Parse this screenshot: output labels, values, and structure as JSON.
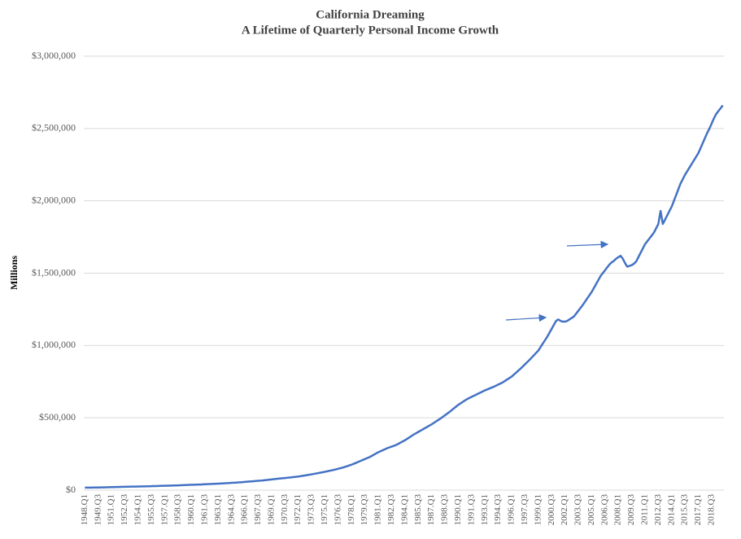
{
  "chart_data": {
    "type": "line",
    "title": "California  Dreaming",
    "subtitle": "A Lifetime of Quarterly Personal Income Growth",
    "y_label": "Millions",
    "color": "#4472c4",
    "grid": true,
    "ylim": [
      0,
      3000000
    ],
    "yticks": [
      {
        "value": 0,
        "label": "$0"
      },
      {
        "value": 500000,
        "label": "$500,000"
      },
      {
        "value": 1000000,
        "label": "$1,000,000"
      },
      {
        "value": 1500000,
        "label": "$1,500,000"
      },
      {
        "value": 2000000,
        "label": "$2,000,000"
      },
      {
        "value": 2500000,
        "label": "$2,500,000"
      },
      {
        "value": 3000000,
        "label": "$3,000,000"
      }
    ],
    "categories": [
      "1948.Q1",
      null,
      null,
      null,
      null,
      null,
      "1949.Q3",
      null,
      null,
      null,
      null,
      null,
      "1951.Q1",
      null,
      null,
      null,
      null,
      null,
      "1952.Q3",
      null,
      null,
      null,
      null,
      null,
      "1954.Q1",
      null,
      null,
      null,
      null,
      null,
      "1955.Q3",
      null,
      null,
      null,
      null,
      null,
      "1957.Q1",
      null,
      null,
      null,
      null,
      null,
      "1958.Q3",
      null,
      null,
      null,
      null,
      null,
      "1960.Q1",
      null,
      null,
      null,
      null,
      null,
      "1961.Q3",
      null,
      null,
      null,
      null,
      null,
      "1963.Q1",
      null,
      null,
      null,
      null,
      null,
      "1964.Q3",
      null,
      null,
      null,
      null,
      null,
      "1966.Q1",
      null,
      null,
      null,
      null,
      null,
      "1967.Q3",
      null,
      null,
      null,
      null,
      null,
      "1969.Q1",
      null,
      null,
      null,
      null,
      null,
      "1970.Q3",
      null,
      null,
      null,
      null,
      null,
      "1972.Q1",
      null,
      null,
      null,
      null,
      null,
      "1973.Q3",
      null,
      null,
      null,
      null,
      null,
      "1975.Q1",
      null,
      null,
      null,
      null,
      null,
      "1976.Q3",
      null,
      null,
      null,
      null,
      null,
      "1978.Q1",
      null,
      null,
      null,
      null,
      null,
      "1979.Q3",
      null,
      null,
      null,
      null,
      null,
      "1981.Q1",
      null,
      null,
      null,
      null,
      null,
      "1982.Q3",
      null,
      null,
      null,
      null,
      null,
      "1984.Q1",
      null,
      null,
      null,
      null,
      null,
      "1985.Q3",
      null,
      null,
      null,
      null,
      null,
      "1987.Q1",
      null,
      null,
      null,
      null,
      null,
      "1988.Q3",
      null,
      null,
      null,
      null,
      null,
      "1990.Q1",
      null,
      null,
      null,
      null,
      null,
      "1991.Q3",
      null,
      null,
      null,
      null,
      null,
      "1993.Q1",
      null,
      null,
      null,
      null,
      null,
      "1994.Q3",
      null,
      null,
      null,
      null,
      null,
      "1996.Q1",
      null,
      null,
      null,
      null,
      null,
      "1997.Q3",
      null,
      null,
      null,
      null,
      null,
      "1999.Q1",
      null,
      null,
      null,
      null,
      null,
      "2000.Q3",
      null,
      null,
      null,
      null,
      null,
      "2002.Q1",
      null,
      null,
      null,
      null,
      null,
      "2003.Q3",
      null,
      null,
      null,
      null,
      null,
      "2005.Q1",
      null,
      null,
      null,
      null,
      null,
      "2006.Q3",
      null,
      null,
      null,
      null,
      null,
      "2008.Q1",
      null,
      null,
      null,
      null,
      null,
      "2009.Q3",
      null,
      null,
      null,
      null,
      null,
      "2011.Q1",
      null,
      null,
      null,
      null,
      null,
      "2012.Q3",
      null,
      null,
      null,
      null,
      null,
      "2014.Q1",
      null,
      null,
      null,
      null,
      null,
      "2015.Q3",
      null,
      null,
      null,
      null,
      null,
      "2017.Q1",
      null,
      null,
      null,
      null,
      null,
      "2018.Q3",
      null,
      null,
      null,
      null,
      null
    ],
    "values": [
      17500,
      17625,
      17750,
      17875,
      18000,
      18250,
      18500,
      18750,
      19000,
      19500,
      20000,
      20500,
      21000,
      21400,
      21800,
      22100,
      22500,
      22900,
      23300,
      23600,
      24000,
      24300,
      24500,
      24800,
      25000,
      25400,
      25800,
      26100,
      26500,
      27000,
      27500,
      28000,
      28500,
      29000,
      29500,
      30000,
      30500,
      30900,
      31300,
      31600,
      32000,
      32600,
      33300,
      33900,
      34500,
      35100,
      35800,
      36400,
      37000,
      37500,
      38000,
      38500,
      39000,
      39800,
      40500,
      41300,
      42000,
      42800,
      43500,
      44300,
      45000,
      45900,
      46800,
      47600,
      48500,
      49400,
      50300,
      51100,
      52000,
      53300,
      54500,
      55800,
      57000,
      58300,
      59500,
      60800,
      62000,
      63300,
      64500,
      65800,
      67000,
      68800,
      70500,
      72300,
      74000,
      75800,
      77500,
      79300,
      81000,
      82500,
      84000,
      85500,
      87000,
      88800,
      90500,
      92300,
      94000,
      96500,
      99000,
      101500,
      104000,
      106800,
      109500,
      112300,
      115000,
      118000,
      121000,
      124000,
      127000,
      130300,
      133500,
      136800,
      140000,
      144000,
      148000,
      152000,
      156000,
      161000,
      166000,
      171000,
      176000,
      182500,
      189000,
      195500,
      202000,
      208500,
      215000,
      221500,
      228000,
      236500,
      245000,
      253500,
      262000,
      269000,
      276000,
      283000,
      290000,
      295500,
      301000,
      306500,
      312000,
      320300,
      328500,
      336800,
      345000,
      355000,
      365000,
      375000,
      385000,
      393800,
      402500,
      411300,
      420000,
      428800,
      437500,
      446300,
      455000,
      465000,
      475000,
      485000,
      495000,
      506300,
      517500,
      528800,
      540000,
      552500,
      565000,
      577500,
      590000,
      600000,
      610000,
      620000,
      630000,
      637500,
      645000,
      652500,
      660000,
      667500,
      675000,
      682500,
      690000,
      696300,
      702500,
      708800,
      715000,
      722500,
      730000,
      737500,
      745000,
      755000,
      765000,
      775000,
      785000,
      798800,
      812500,
      826300,
      840000,
      855000,
      870000,
      885000,
      900000,
      916300,
      932500,
      948800,
      965000,
      988800,
      1012500,
      1036300,
      1060000,
      1087500,
      1115000,
      1142500,
      1170000,
      1180000,
      1170000,
      1165000,
      1165000,
      1170000,
      1180000,
      1190000,
      1200000,
      1220000,
      1240000,
      1260000,
      1280000,
      1302500,
      1325000,
      1347500,
      1370000,
      1397500,
      1425000,
      1452500,
      1480000,
      1500000,
      1520000,
      1540000,
      1560000,
      1575000,
      1585000,
      1600000,
      1610000,
      1620000,
      1600000,
      1570000,
      1545000,
      1550000,
      1555000,
      1565000,
      1580000,
      1610000,
      1640000,
      1670000,
      1700000,
      1720000,
      1740000,
      1760000,
      1780000,
      1810000,
      1840000,
      1930000,
      1840000,
      1870000,
      1900000,
      1930000,
      1960000,
      2000000,
      2040000,
      2080000,
      2120000,
      2150000,
      2180000,
      2205000,
      2230000,
      2255000,
      2280000,
      2305000,
      2330000,
      2365000,
      2400000,
      2435000,
      2470000,
      2500000,
      2535000,
      2570000,
      2600000,
      2620000,
      2640000,
      2660000
    ]
  }
}
